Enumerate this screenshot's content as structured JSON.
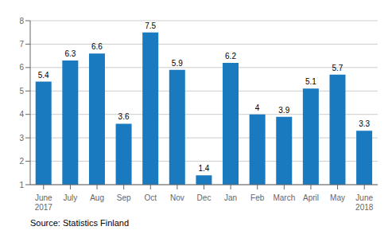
{
  "chart_data": {
    "type": "bar",
    "categories": [
      "June\n2017",
      "July",
      "Aug",
      "Sep",
      "Oct",
      "Nov",
      "Dec",
      "Jan",
      "Feb",
      "March",
      "April",
      "May",
      "June\n2018"
    ],
    "values": [
      5.4,
      6.3,
      6.6,
      3.6,
      7.5,
      5.9,
      1.4,
      6.2,
      4.0,
      3.9,
      5.1,
      5.7,
      3.3
    ],
    "color": "#1a7abf",
    "ylim": [
      1,
      8
    ],
    "yticks": [
      1,
      2,
      3,
      4,
      5,
      6,
      7,
      8
    ],
    "grid": true,
    "data_labels": true,
    "annotations": [
      "Source: Statistics Finland"
    ]
  }
}
